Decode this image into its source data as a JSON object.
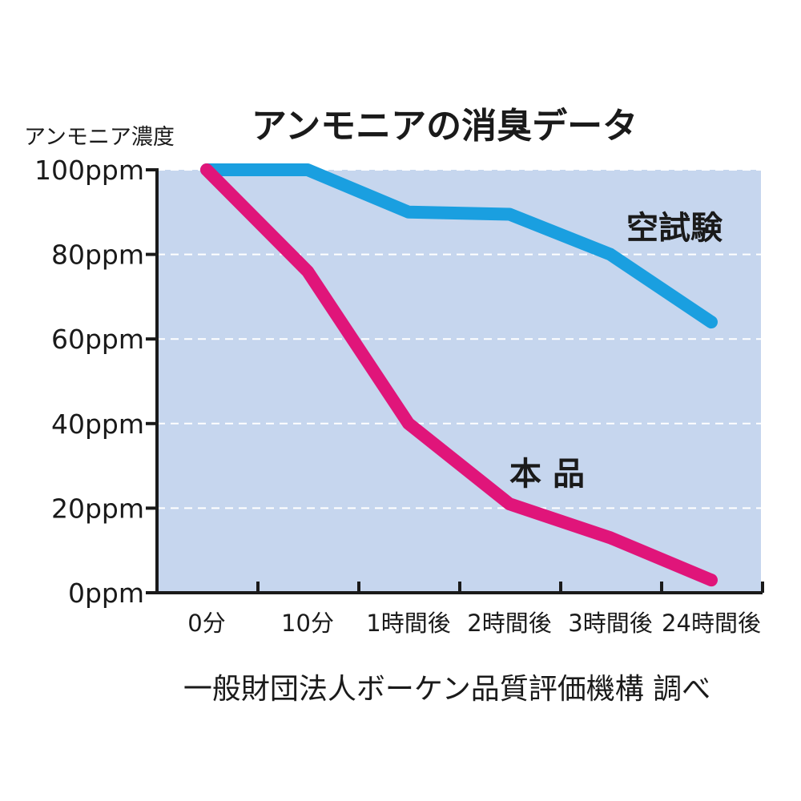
{
  "chart_data": {
    "type": "line",
    "title": "アンモニアの消臭データ",
    "ylabel": "アンモニア濃度",
    "categories": [
      "0分",
      "10分",
      "1時間後",
      "2時間後",
      "3時間後",
      "24時間後"
    ],
    "y_ticks": [
      "0ppm",
      "20ppm",
      "40ppm",
      "60ppm",
      "80ppm",
      "100ppm"
    ],
    "ylim": [
      0,
      100
    ],
    "grid": true,
    "series": [
      {
        "name": "空試験",
        "color": "#1a9fe0",
        "values": [
          100,
          100,
          90,
          89.5,
          80,
          64
        ]
      },
      {
        "name": "本 品",
        "color": "#e0157a",
        "values": [
          100,
          76,
          40,
          21,
          13,
          3
        ]
      }
    ],
    "source": "一般財団法人ボーケン品質評価機構 調べ",
    "plot_background": "#c6d6ee"
  }
}
